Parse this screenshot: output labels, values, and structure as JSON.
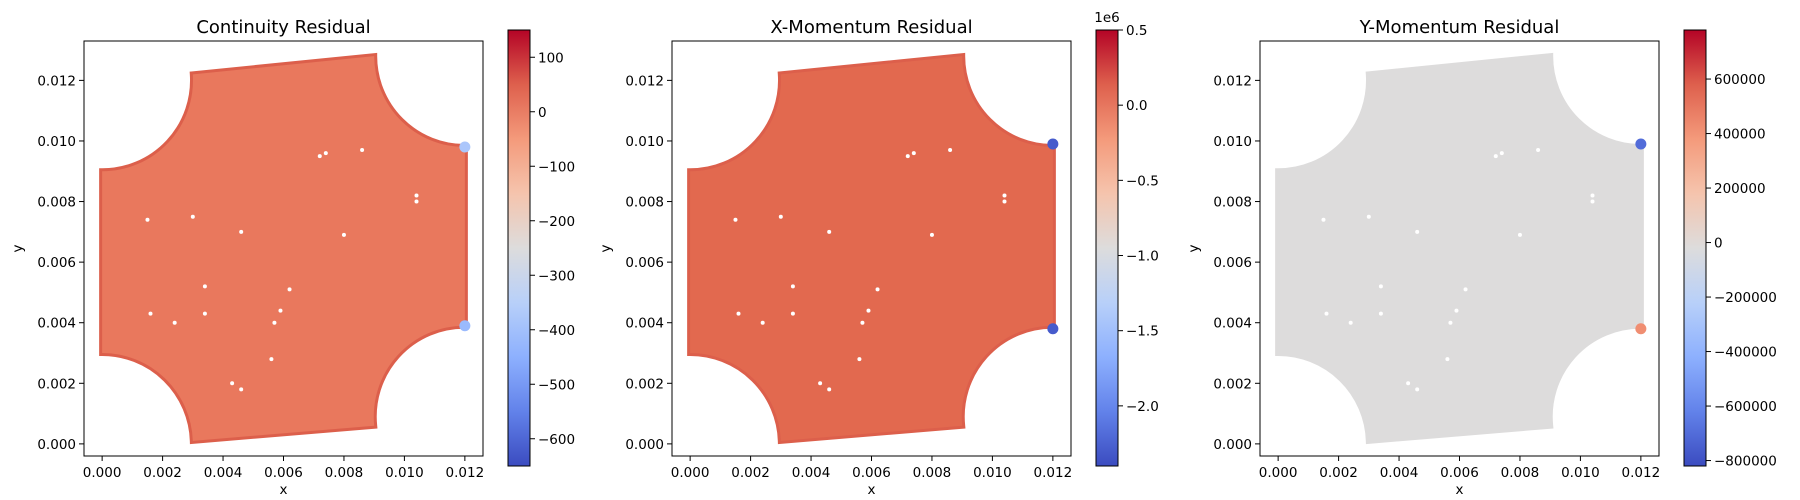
{
  "chart_data": [
    {
      "type": "scatter",
      "title": "Continuity Residual",
      "xlabel": "x",
      "ylabel": "y",
      "xlim": [
        -0.0006,
        0.0126
      ],
      "ylim": [
        -0.0004,
        0.0133
      ],
      "xticks": [
        0.0,
        0.002,
        0.004,
        0.006,
        0.008,
        0.01,
        0.012
      ],
      "xtick_labels": [
        "0.000",
        "0.002",
        "0.004",
        "0.006",
        "0.008",
        "0.010",
        "0.012"
      ],
      "yticks": [
        0.0,
        0.002,
        0.004,
        0.006,
        0.008,
        0.01,
        0.012
      ],
      "ytick_labels": [
        "0.000",
        "0.002",
        "0.004",
        "0.006",
        "0.008",
        "0.010",
        "0.012"
      ],
      "colormap": "coolwarm",
      "colorbar": {
        "vmin": -650,
        "vmax": 150,
        "ticks": [
          100,
          0,
          -100,
          -200,
          -300,
          -400,
          -500,
          -600
        ],
        "tick_labels": [
          "100",
          "0",
          "−100",
          "−200",
          "−300",
          "−400",
          "−500",
          "−600"
        ],
        "offset_label": ""
      },
      "field_value": 10,
      "field_color": "#e9785d",
      "edge_color": "#dc5f4b",
      "highlights": [
        {
          "x": 0.012,
          "y": 0.0098,
          "value": -380
        },
        {
          "x": 0.012,
          "y": 0.0039,
          "value": -420
        }
      ]
    },
    {
      "type": "scatter",
      "title": "X-Momentum Residual",
      "xlabel": "x",
      "ylabel": "y",
      "xlim": [
        -0.0006,
        0.0126
      ],
      "ylim": [
        -0.0004,
        0.0133
      ],
      "xticks": [
        0.0,
        0.002,
        0.004,
        0.006,
        0.008,
        0.01,
        0.012
      ],
      "xtick_labels": [
        "0.000",
        "0.002",
        "0.004",
        "0.006",
        "0.008",
        "0.010",
        "0.012"
      ],
      "yticks": [
        0.0,
        0.002,
        0.004,
        0.006,
        0.008,
        0.01,
        0.012
      ],
      "ytick_labels": [
        "0.000",
        "0.002",
        "0.004",
        "0.006",
        "0.008",
        "0.010",
        "0.012"
      ],
      "colormap": "coolwarm",
      "colorbar": {
        "vmin": -2.4,
        "vmax": 0.5,
        "ticks": [
          0.5,
          0.0,
          -0.5,
          -1.0,
          -1.5,
          -2.0
        ],
        "tick_labels": [
          "0.5",
          "0.0",
          "−0.5",
          "−1.0",
          "−1.5",
          "−2.0"
        ],
        "offset_label": "1e6"
      },
      "field_value": 0.0,
      "field_color": "#e2694f",
      "edge_color": "#dc5f4b",
      "highlights": [
        {
          "x": 0.012,
          "y": 0.0099,
          "value": -2.3
        },
        {
          "x": 0.012,
          "y": 0.0038,
          "value": -2.3
        }
      ]
    },
    {
      "type": "scatter",
      "title": "Y-Momentum Residual",
      "xlabel": "x",
      "ylabel": "y",
      "xlim": [
        -0.0006,
        0.0126
      ],
      "ylim": [
        -0.0004,
        0.0133
      ],
      "xticks": [
        0.0,
        0.002,
        0.004,
        0.006,
        0.008,
        0.01,
        0.012
      ],
      "xtick_labels": [
        "0.000",
        "0.002",
        "0.004",
        "0.006",
        "0.008",
        "0.010",
        "0.012"
      ],
      "yticks": [
        0.0,
        0.002,
        0.004,
        0.006,
        0.008,
        0.01,
        0.012
      ],
      "ytick_labels": [
        "0.000",
        "0.002",
        "0.004",
        "0.006",
        "0.008",
        "0.010",
        "0.012"
      ],
      "colormap": "coolwarm",
      "colorbar": {
        "vmin": -820000,
        "vmax": 780000,
        "ticks": [
          600000,
          400000,
          200000,
          0,
          -200000,
          -400000,
          -600000,
          -800000
        ],
        "tick_labels": [
          "600000",
          "400000",
          "200000",
          "0",
          "−200000",
          "−400000",
          "−600000",
          "−800000"
        ],
        "offset_label": ""
      },
      "field_value": 0,
      "field_color": "#dddcdc",
      "edge_color": "#dddcdc",
      "highlights": [
        {
          "x": 0.012,
          "y": 0.0099,
          "value": -700000
        },
        {
          "x": 0.012,
          "y": 0.0038,
          "value": 420000
        }
      ]
    }
  ]
}
